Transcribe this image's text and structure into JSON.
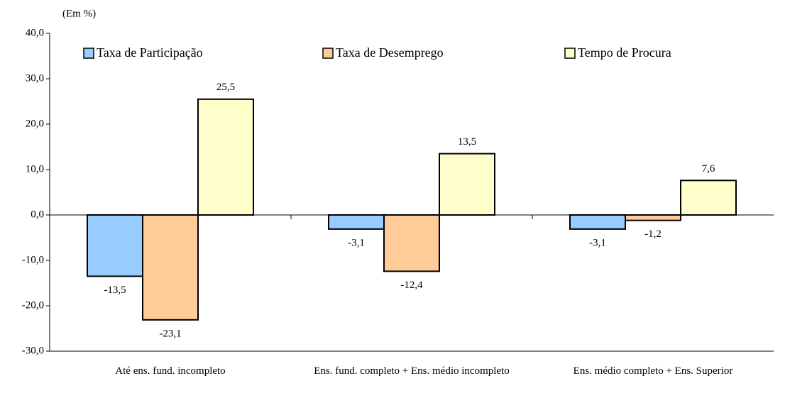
{
  "chart_data": {
    "type": "bar",
    "y_label": "(Em %)",
    "categories": [
      "Até ens. fund. incompleto",
      "Ens. fund. completo + Ens. médio incompleto",
      "Ens. médio completo + Ens. Superior"
    ],
    "series": [
      {
        "name": "Taxa de Participação",
        "color": "#99ccff",
        "values": [
          -13.5,
          -3.1,
          -3.1
        ],
        "value_labels": [
          "-13,5",
          "-3,1",
          "-3,1"
        ]
      },
      {
        "name": "Taxa de Desemprego",
        "color": "#ffcc99",
        "values": [
          -23.1,
          -12.4,
          -1.2
        ],
        "value_labels": [
          "-23,1",
          "-12,4",
          "-1,2"
        ]
      },
      {
        "name": "Tempo de Procura",
        "color": "#ffffcc",
        "values": [
          25.5,
          13.5,
          7.6
        ],
        "value_labels": [
          "25,5",
          "13,5",
          "7,6"
        ]
      }
    ],
    "ylim": [
      -30,
      40
    ],
    "yticks": [
      {
        "value": -30,
        "label": "-30,0"
      },
      {
        "value": -20,
        "label": "-20,0"
      },
      {
        "value": -10,
        "label": "-10,0"
      },
      {
        "value": 0,
        "label": "0,0"
      },
      {
        "value": 10,
        "label": "10,0"
      },
      {
        "value": 20,
        "label": "20,0"
      },
      {
        "value": 30,
        "label": "30,0"
      },
      {
        "value": 40,
        "label": "40,0"
      }
    ],
    "legend": "top"
  }
}
